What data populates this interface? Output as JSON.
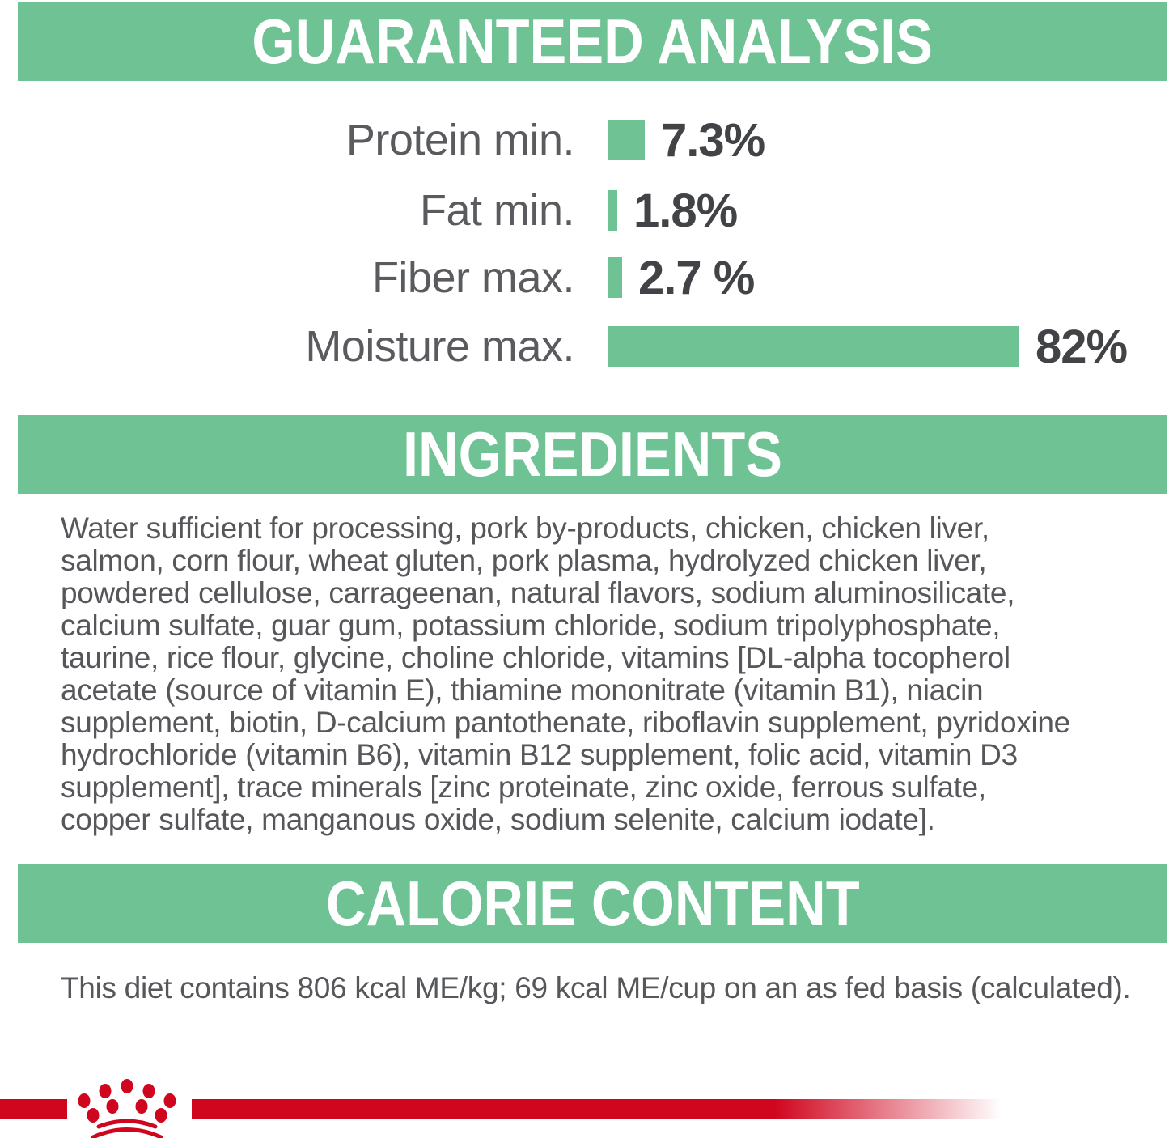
{
  "page": {
    "background": "#ffffff",
    "accent_green": "#6EC293",
    "accent_red": "#D0061F",
    "text_gray": "#56575A"
  },
  "sections": {
    "guaranteed_analysis": {
      "title": "GUARANTEED ANALYSIS"
    },
    "ingredients": {
      "title": "INGREDIENTS",
      "lines": [
        "Water sufficient for processing, pork by-products, chicken, chicken liver,",
        "salmon, corn flour, wheat gluten, pork plasma, hydrolyzed chicken liver,",
        "powdered cellulose, carrageenan, natural flavors, sodium aluminosilicate,",
        "calcium sulfate, guar gum, potassium chloride, sodium tripolyphosphate,",
        "taurine, rice flour, glycine, choline chloride, vitamins [DL-alpha tocopherol",
        "acetate (source of vitamin E), thiamine mononitrate (vitamin B1), niacin",
        "supplement, biotin, D-calcium pantothenate, riboflavin supplement, pyridoxine",
        "hydrochloride (vitamin B6), vitamin B12 supplement, folic acid, vitamin D3",
        "supplement], trace minerals [zinc proteinate, zinc oxide, ferrous sulfate,",
        "copper sulfate, manganous oxide, sodium selenite, calcium iodate]."
      ]
    },
    "calorie_content": {
      "title": "CALORIE CONTENT",
      "text": "This diet contains 806 kcal ME/kg; 69 kcal ME/cup on an as fed basis (calculated)."
    }
  },
  "chart_data": {
    "type": "bar",
    "orientation": "horizontal",
    "title": "GUARANTEED ANALYSIS",
    "categories": [
      "Protein min.",
      "Fat min.",
      "Fiber max.",
      "Moisture max."
    ],
    "values": [
      7.3,
      1.8,
      2.7,
      82
    ],
    "value_labels": [
      "7.3%",
      "1.8%",
      "2.7 %",
      "82%"
    ],
    "unit": "percent",
    "xlim": [
      0,
      100
    ],
    "grid": false,
    "legend": false,
    "bar_color": "#6EC293"
  },
  "logo": {
    "name": "royal-canin-crown",
    "color": "#D0061F"
  }
}
